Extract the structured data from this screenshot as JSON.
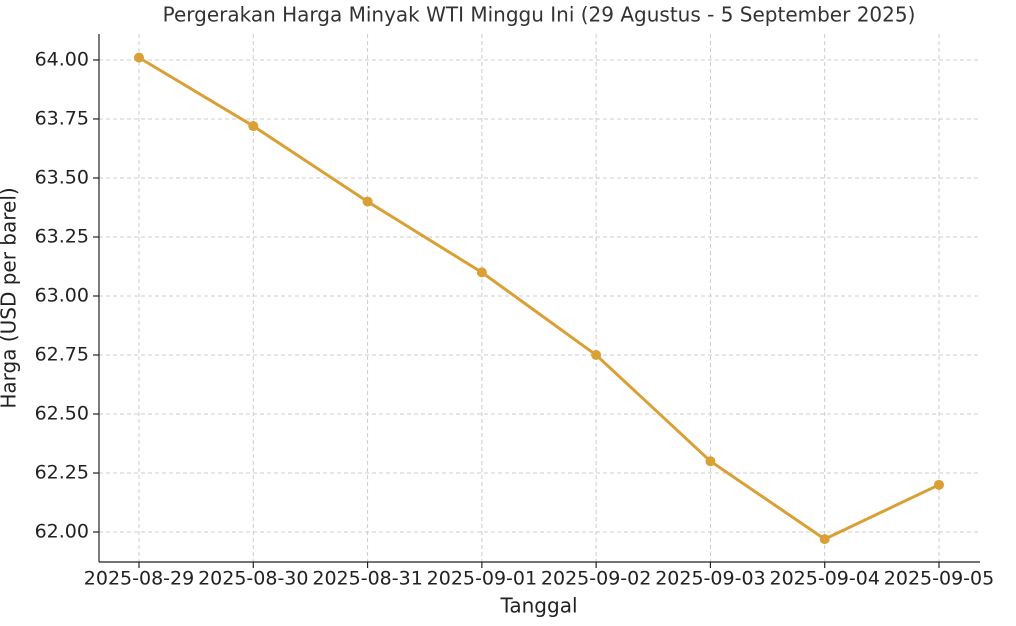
{
  "chart_data": {
    "type": "line",
    "title": "Pergerakan Harga Minyak WTI Minggu Ini (29 Agustus - 5 September 2025)",
    "x_label": "Tanggal",
    "y_label": "Harga (USD per barel)",
    "categories": [
      "2025-08-29",
      "2025-08-30",
      "2025-08-31",
      "2025-09-01",
      "2025-09-02",
      "2025-09-03",
      "2025-09-04",
      "2025-09-05"
    ],
    "series": [
      {
        "name": "WTI",
        "color": "#daa035",
        "values": [
          64.01,
          63.72,
          63.4,
          63.1,
          62.75,
          62.3,
          61.97,
          62.2
        ]
      }
    ],
    "ylim": [
      61.873,
      64.11
    ],
    "yticks": [
      {
        "value": 62,
        "label": "62.00"
      },
      62.25,
      {
        "value": 62.5,
        "label": "62.50"
      },
      62.75,
      {
        "value": 63,
        "label": "63.00"
      },
      63.25,
      {
        "value": 63.5,
        "label": "63.50"
      },
      63.75,
      {
        "value": 64,
        "label": "64.00"
      }
    ],
    "grid": true
  }
}
